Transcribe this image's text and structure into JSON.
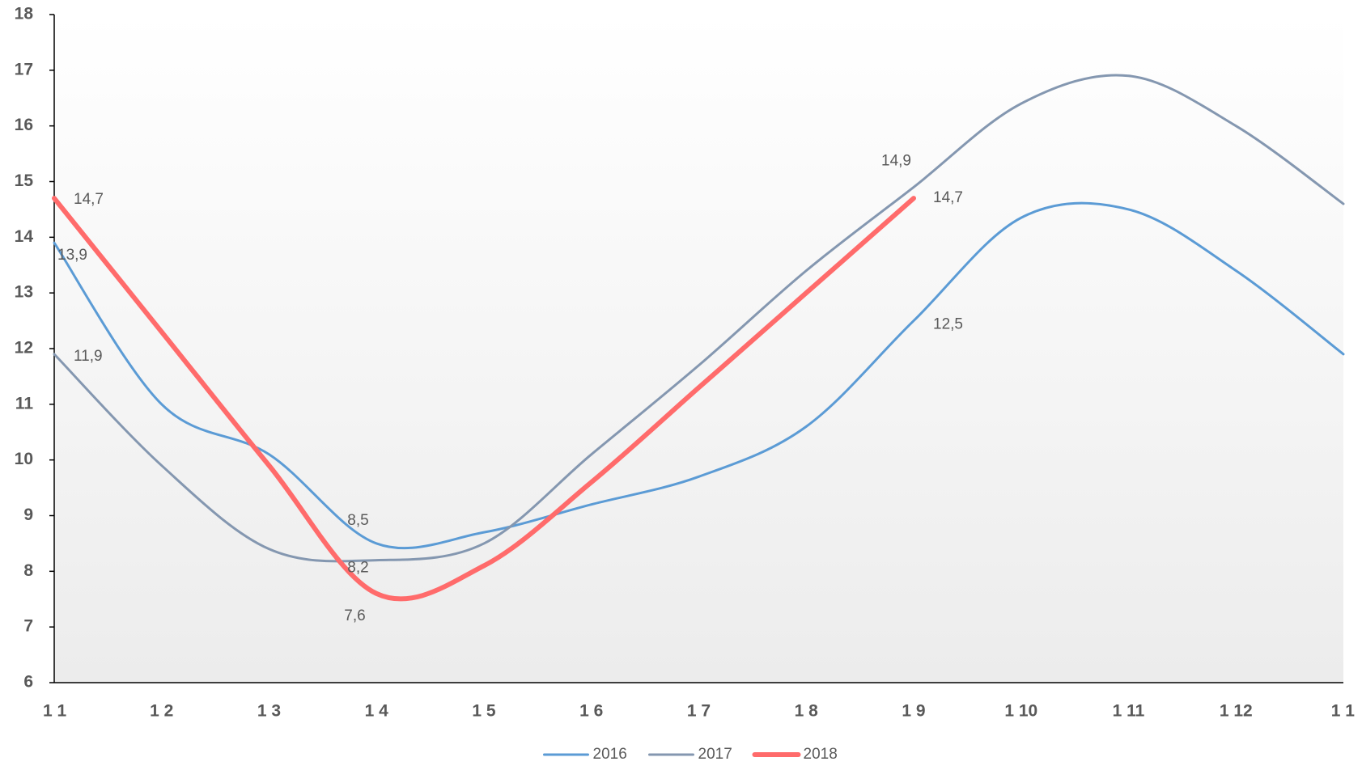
{
  "chart_data": {
    "type": "line",
    "categories": [
      "1 1",
      "1 2",
      "1 3",
      "1 4",
      "1 5",
      "1 6",
      "1 7",
      "1 8",
      "1 9",
      "1 10",
      "1 11",
      "1 12",
      "1 1"
    ],
    "ylim": [
      6,
      18
    ],
    "yticks": [
      6,
      7,
      8,
      9,
      10,
      11,
      12,
      13,
      14,
      15,
      16,
      17,
      18
    ],
    "legend": "bottom",
    "series": [
      {
        "name": "2016",
        "color": "#5b9bd5",
        "values": [
          13.9,
          11.0,
          10.1,
          8.5,
          8.7,
          9.2,
          9.7,
          10.6,
          12.5,
          14.35,
          14.5,
          13.4,
          11.9
        ],
        "value_labels": [
          "13,9",
          null,
          null,
          "8,5",
          null,
          null,
          null,
          null,
          "12,5",
          null,
          null,
          null,
          null
        ]
      },
      {
        "name": "2017",
        "color": "#8497b0",
        "values": [
          11.9,
          9.9,
          8.4,
          8.2,
          8.5,
          10.1,
          11.7,
          13.4,
          14.9,
          16.4,
          16.9,
          16.0,
          14.6
        ],
        "value_labels": [
          "11,9",
          null,
          null,
          "8,2",
          null,
          null,
          null,
          null,
          "14,9",
          null,
          null,
          null,
          null
        ]
      },
      {
        "name": "2018",
        "color": "#ff6b6b",
        "values": [
          14.7,
          12.3,
          9.9,
          7.6,
          8.1,
          9.6,
          11.3,
          13.0,
          14.7,
          null,
          null,
          null,
          null
        ],
        "value_labels": [
          "14,7",
          null,
          null,
          "7,6",
          null,
          null,
          null,
          null,
          "14,7",
          null,
          null,
          null,
          null
        ]
      }
    ]
  }
}
